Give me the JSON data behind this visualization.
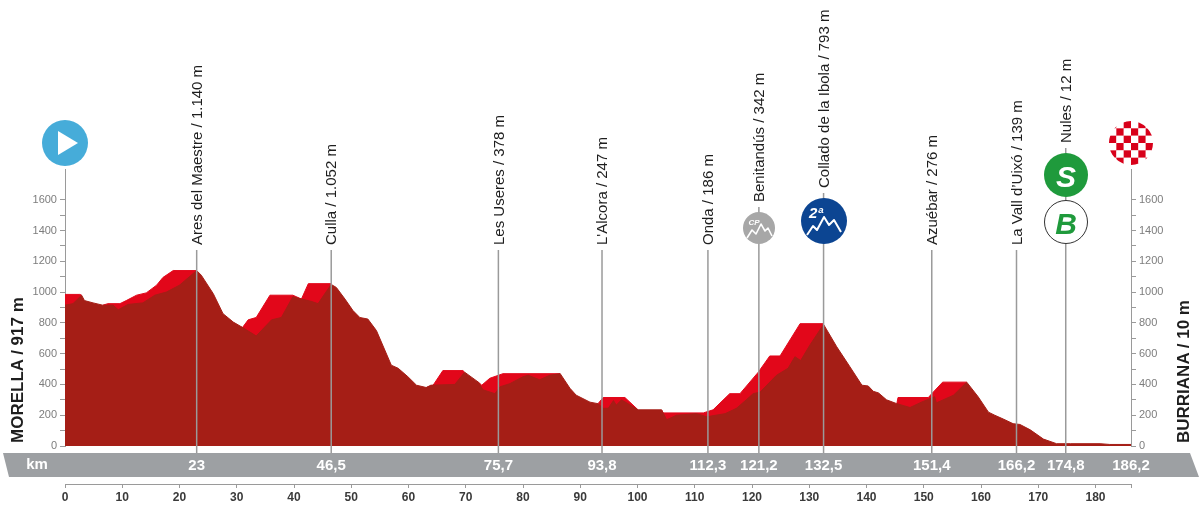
{
  "chart_data": {
    "type": "area",
    "xlim": [
      0,
      186.2
    ],
    "xticks": [
      0,
      10,
      20,
      30,
      40,
      50,
      60,
      70,
      80,
      90,
      100,
      110,
      120,
      130,
      140,
      150,
      160,
      170,
      180,
      {
        "value": 186.2,
        "label": null
      }
    ],
    "x2label": "km",
    "x2lim": [
      0,
      186.2
    ],
    "x2ticks": [
      23,
      {
        "value": 46.5,
        "label": "46,5"
      },
      {
        "value": 75.7,
        "label": "75,7"
      },
      {
        "value": 93.8,
        "label": "93,8"
      },
      {
        "value": 112.3,
        "label": "112,3"
      },
      {
        "value": 121.2,
        "label": "121,2"
      },
      {
        "value": 132.5,
        "label": "132,5"
      },
      {
        "value": 151.4,
        "label": "151,4"
      },
      {
        "value": 166.2,
        "label": "166,2"
      },
      {
        "value": 174.8,
        "label": "174,8"
      },
      {
        "value": 186.2,
        "label": "186,2"
      }
    ],
    "ylabel": "MORELLA / 917 m",
    "y2label": "BURRIANA / 10 m",
    "ylim": [
      0,
      1800
    ],
    "yticks": [
      0,
      {
        "value": 100,
        "label": null
      },
      200,
      {
        "value": 300,
        "label": null
      },
      400,
      {
        "value": 500,
        "label": null
      },
      600,
      {
        "value": 700,
        "label": null
      },
      800,
      {
        "value": 900,
        "label": null
      },
      1000,
      {
        "value": 1100,
        "label": null
      },
      1200,
      {
        "value": 1300,
        "label": null
      },
      1400,
      {
        "value": 1500,
        "label": null
      },
      1600
    ],
    "y2lim": [
      0,
      1800
    ],
    "y2ticks": [
      0,
      {
        "value": 100,
        "label": null
      },
      200,
      {
        "value": 300,
        "label": null
      },
      400,
      {
        "value": 500,
        "label": null
      },
      600,
      {
        "value": 700,
        "label": null
      },
      800,
      {
        "value": 900,
        "label": null
      },
      1000,
      {
        "value": 1100,
        "label": null
      },
      1200,
      {
        "value": 1300,
        "label": null
      },
      1400,
      {
        "value": 1500,
        "label": null
      },
      1600
    ],
    "series": [
      {
        "color": "#a51e16",
        "x": [
          0,
          1.4,
          2.9,
          3.4,
          4.9,
          6.6,
          8.4,
          9.3,
          11,
          13.6,
          15.7,
          17.7,
          20,
          23,
          23.8,
          25.9,
          27.6,
          29.4,
          30.8,
          33.4,
          36.1,
          37.8,
          39.8,
          41.3,
          43,
          44.2,
          46.5,
          47.4,
          48.9,
          50.3,
          51.5,
          52.9,
          54.4,
          57,
          58.2,
          59.9,
          61.4,
          63.1,
          63.9,
          68.1,
          69.8,
          72.2,
          73,
          75.1,
          76,
          77.7,
          80,
          80.9,
          82.9,
          84.7,
          86.5,
          88.2,
          89.3,
          91.7,
          93.1,
          94,
          94.9,
          95.8,
          96.3,
          97.2,
          100.1,
          104.2,
          105.1,
          106.8,
          110.3,
          112.1,
          115.3,
          117.3,
          119,
          120.2,
          121.4,
          124.3,
          126.3,
          127.5,
          128.5,
          130.1,
          132.5,
          134.8,
          137.1,
          139.2,
          140.3,
          141.2,
          142.1,
          143.5,
          145.3,
          147.6,
          149.6,
          151.9,
          152.2,
          155.2,
          157.5,
          159.5,
          161.3,
          162.4,
          163.9,
          165.6,
          166.8,
          168.6,
          170.9,
          173.2,
          175.6,
          180.8,
          182.5,
          186.2
        ],
        "values": [
          915,
          925,
          980,
          945,
          930,
          915,
          915,
          885,
          920,
          930,
          980,
          1000,
          1045,
          1140,
          1110,
          990,
          860,
          805,
          775,
          715,
          820,
          835,
          970,
          955,
          940,
          925,
          1050,
          1030,
          955,
          880,
          835,
          825,
          750,
          525,
          505,
          450,
          395,
          380,
          395,
          400,
          480,
          415,
          365,
          340,
          385,
          405,
          450,
          460,
          430,
          460,
          470,
          375,
          330,
          285,
          275,
          245,
          245,
          295,
          265,
          300,
          235,
          235,
          170,
          200,
          210,
          190,
          210,
          245,
          300,
          340,
          350,
          460,
          505,
          580,
          555,
          655,
          790,
          645,
          515,
          395,
          390,
          355,
          345,
          300,
          275,
          250,
          285,
          320,
          280,
          330,
          415,
          320,
          220,
          200,
          175,
          145,
          140,
          105,
          45,
          15,
          15,
          15,
          10,
          10
        ]
      },
      {
        "color": "#e2071a",
        "x": [
          0,
          2.6,
          2.9,
          4.9,
          6.6,
          7.5,
          9.6,
          10.7,
          12.5,
          14.2,
          16,
          17.1,
          18.9,
          23,
          27,
          30.8,
          31,
          32,
          33.4,
          35.8,
          39.8,
          41.3,
          42.5,
          46.5,
          55,
          63.1,
          64.3,
          66,
          69.5,
          69.8,
          71,
          72.2,
          72.8,
          74.2,
          76.5,
          86.5,
          90,
          93.1,
          94,
          97.8,
          100.1,
          102,
          104.2,
          104.5,
          111.5,
          113.2,
          116.1,
          117.9,
          121.1,
          123.1,
          124.9,
          128.4,
          132.5,
          140,
          145.3,
          145.5,
          150.8,
          151.4,
          153.3,
          157.5
        ],
        "values": [
          985,
          985,
          980,
          null,
          915,
          925,
          925,
          945,
          980,
          995,
          1045,
          1095,
          1140,
          1140,
          null,
          775,
          770,
          820,
          835,
          980,
          980,
          955,
          1055,
          1055,
          null,
          380,
          395,
          490,
          490,
          480,
          null,
          415,
          395,
          440,
          470,
          470,
          null,
          275,
          315,
          315,
          235,
          null,
          235,
          215,
          215,
          235,
          340,
          340,
          480,
          585,
          585,
          795,
          795,
          null,
          275,
          315,
          315,
          340,
          415,
          415
        ]
      }
    ],
    "ref_lines": [
      {
        "axis": "x",
        "value": 23,
        "label": "Ares del Maestre / 1.140 m"
      },
      {
        "axis": "x",
        "value": 46.5,
        "label": "Culla / 1.052 m"
      },
      {
        "axis": "x",
        "value": 75.7,
        "label": "Les Useres / 378 m"
      },
      {
        "axis": "x",
        "value": 93.8,
        "label": "L'Alcora / 247 m"
      },
      {
        "axis": "x",
        "value": 112.3,
        "label": "Onda / 186 m"
      },
      {
        "axis": "x",
        "value": 121.2,
        "label": "Benitandús / 342 m"
      },
      {
        "axis": "x",
        "value": 132.5,
        "label": "Collado de la Ibola / 793 m"
      },
      {
        "axis": "x",
        "value": 151.4,
        "label": "Azuébar / 276 m"
      },
      {
        "axis": "x",
        "value": 166.2,
        "label": "La Vall d’Uixó / 139 m"
      },
      {
        "axis": "x",
        "value": 174.8,
        "label": "Nules / 12 m"
      }
    ],
    "annotations": [
      "CP",
      "2ª",
      "B",
      "S"
    ]
  }
}
